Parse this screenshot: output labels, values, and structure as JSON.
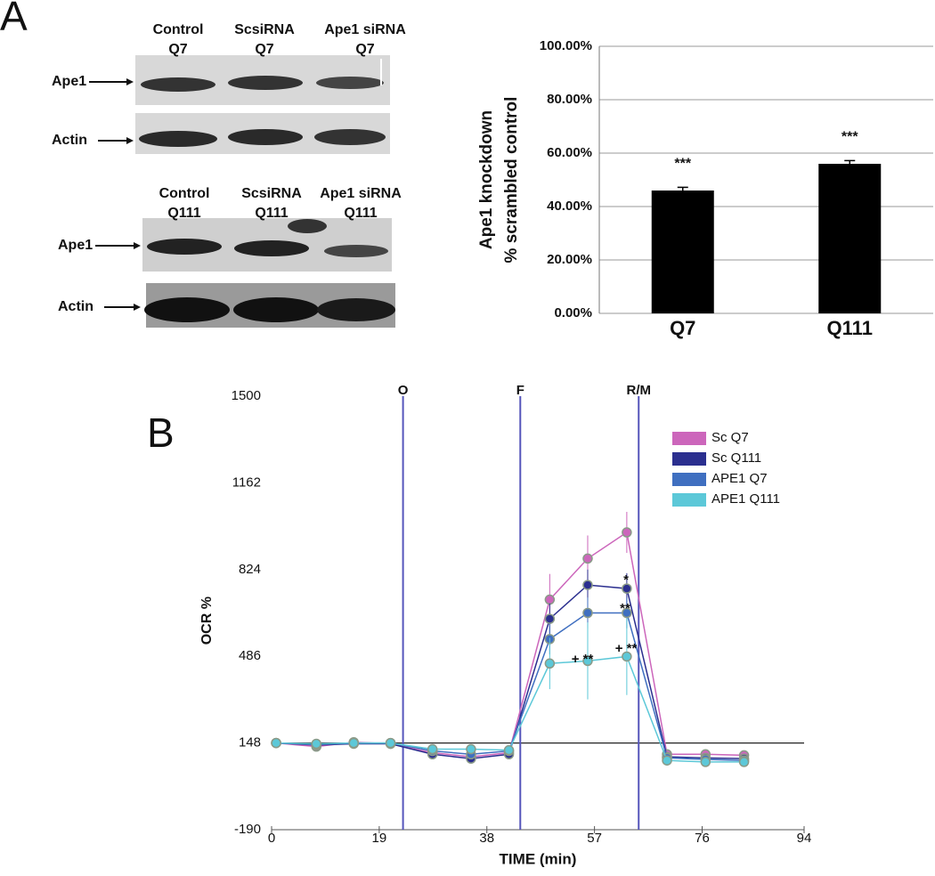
{
  "panel_labels": [
    "A",
    "B"
  ],
  "blots": [
    {
      "lanes": [
        [
          "Control",
          "Q7"
        ],
        [
          "ScsiRNA",
          "Q7"
        ],
        [
          "Ape1 siRNA",
          "Q7"
        ]
      ],
      "rows": [
        "Ape1",
        "Actin"
      ]
    },
    {
      "lanes": [
        [
          "Control",
          "Q111"
        ],
        [
          "ScsiRNA",
          "Q111"
        ],
        [
          "Ape1 siRNA",
          "Q111"
        ]
      ],
      "rows": [
        "Ape1",
        "Actin"
      ]
    }
  ],
  "chart_data": [
    {
      "type": "bar",
      "y_label": [
        "Ape1 knockdown",
        "% scrambled control"
      ],
      "categories": [
        "Q7",
        "Q111"
      ],
      "values": [
        46,
        56
      ],
      "errors": [
        1.2,
        1.2
      ],
      "value_annotations": [
        "***",
        "***"
      ],
      "color": "#000000",
      "ylim": [
        0,
        100
      ],
      "yticks": [
        {
          "value": 0,
          "label": "0.00%"
        },
        {
          "value": 20,
          "label": "20.00%"
        },
        {
          "value": 40,
          "label": "40.00%"
        },
        {
          "value": 60,
          "label": "60.00%"
        },
        {
          "value": 80,
          "label": "80.00%"
        },
        {
          "value": 100,
          "label": "100.00%"
        }
      ],
      "grid": true
    },
    {
      "type": "line",
      "x_label": "TIME (min)",
      "y_label": "OCR %",
      "x": [
        0.8,
        7.9,
        14.5,
        21,
        28.4,
        35.2,
        41.9,
        49.1,
        55.8,
        62.7,
        69.8,
        76.6,
        83.4
      ],
      "series": [
        {
          "name": "Sc Q7",
          "color": "#cc66bb",
          "values": [
            148,
            134,
            151,
            145,
            110,
            94,
            110,
            707,
            867,
            969,
            104,
            104,
            100
          ],
          "errors": [
            10,
            10,
            10,
            10,
            10,
            10,
            10,
            100,
            90,
            80,
            10,
            10,
            10
          ]
        },
        {
          "name": "Sc Q111",
          "color": "#2b2f8f",
          "values": [
            148,
            140,
            145,
            145,
            104,
            87,
            104,
            632,
            764,
            750,
            94,
            90,
            87
          ],
          "errors": [
            10,
            10,
            10,
            10,
            10,
            10,
            10,
            60,
            60,
            60,
            10,
            10,
            10
          ]
        },
        {
          "name": "APE1 Q7",
          "color": "#3f6fc0",
          "values": [
            148,
            143,
            148,
            148,
            117,
            104,
            117,
            553,
            655,
            655,
            90,
            84,
            80
          ],
          "errors": [
            10,
            10,
            10,
            10,
            10,
            10,
            10,
            60,
            60,
            60,
            10,
            10,
            10
          ]
        },
        {
          "name": "APE1 Q111",
          "color": "#5cc8d8",
          "values": [
            148,
            145,
            148,
            148,
            124,
            124,
            120,
            458,
            468,
            485,
            80,
            74,
            74
          ],
          "errors": [
            10,
            10,
            10,
            10,
            10,
            10,
            10,
            100,
            150,
            150,
            10,
            10,
            10
          ]
        }
      ],
      "vlines": [
        {
          "x": 23.2,
          "label": "O"
        },
        {
          "x": 43.9,
          "label": "F"
        },
        {
          "x": 64.8,
          "label": "R/M"
        }
      ],
      "hline": 148,
      "annotations": [
        "*",
        "**",
        "+ **",
        "+ **"
      ],
      "xlim": [
        0,
        94
      ],
      "xticks": [
        0,
        19,
        38,
        57,
        76,
        94
      ],
      "ylim": [
        -190,
        1500
      ],
      "yticks": [
        -190,
        148,
        486,
        824,
        1162,
        1500
      ],
      "legend": "upper right"
    }
  ]
}
